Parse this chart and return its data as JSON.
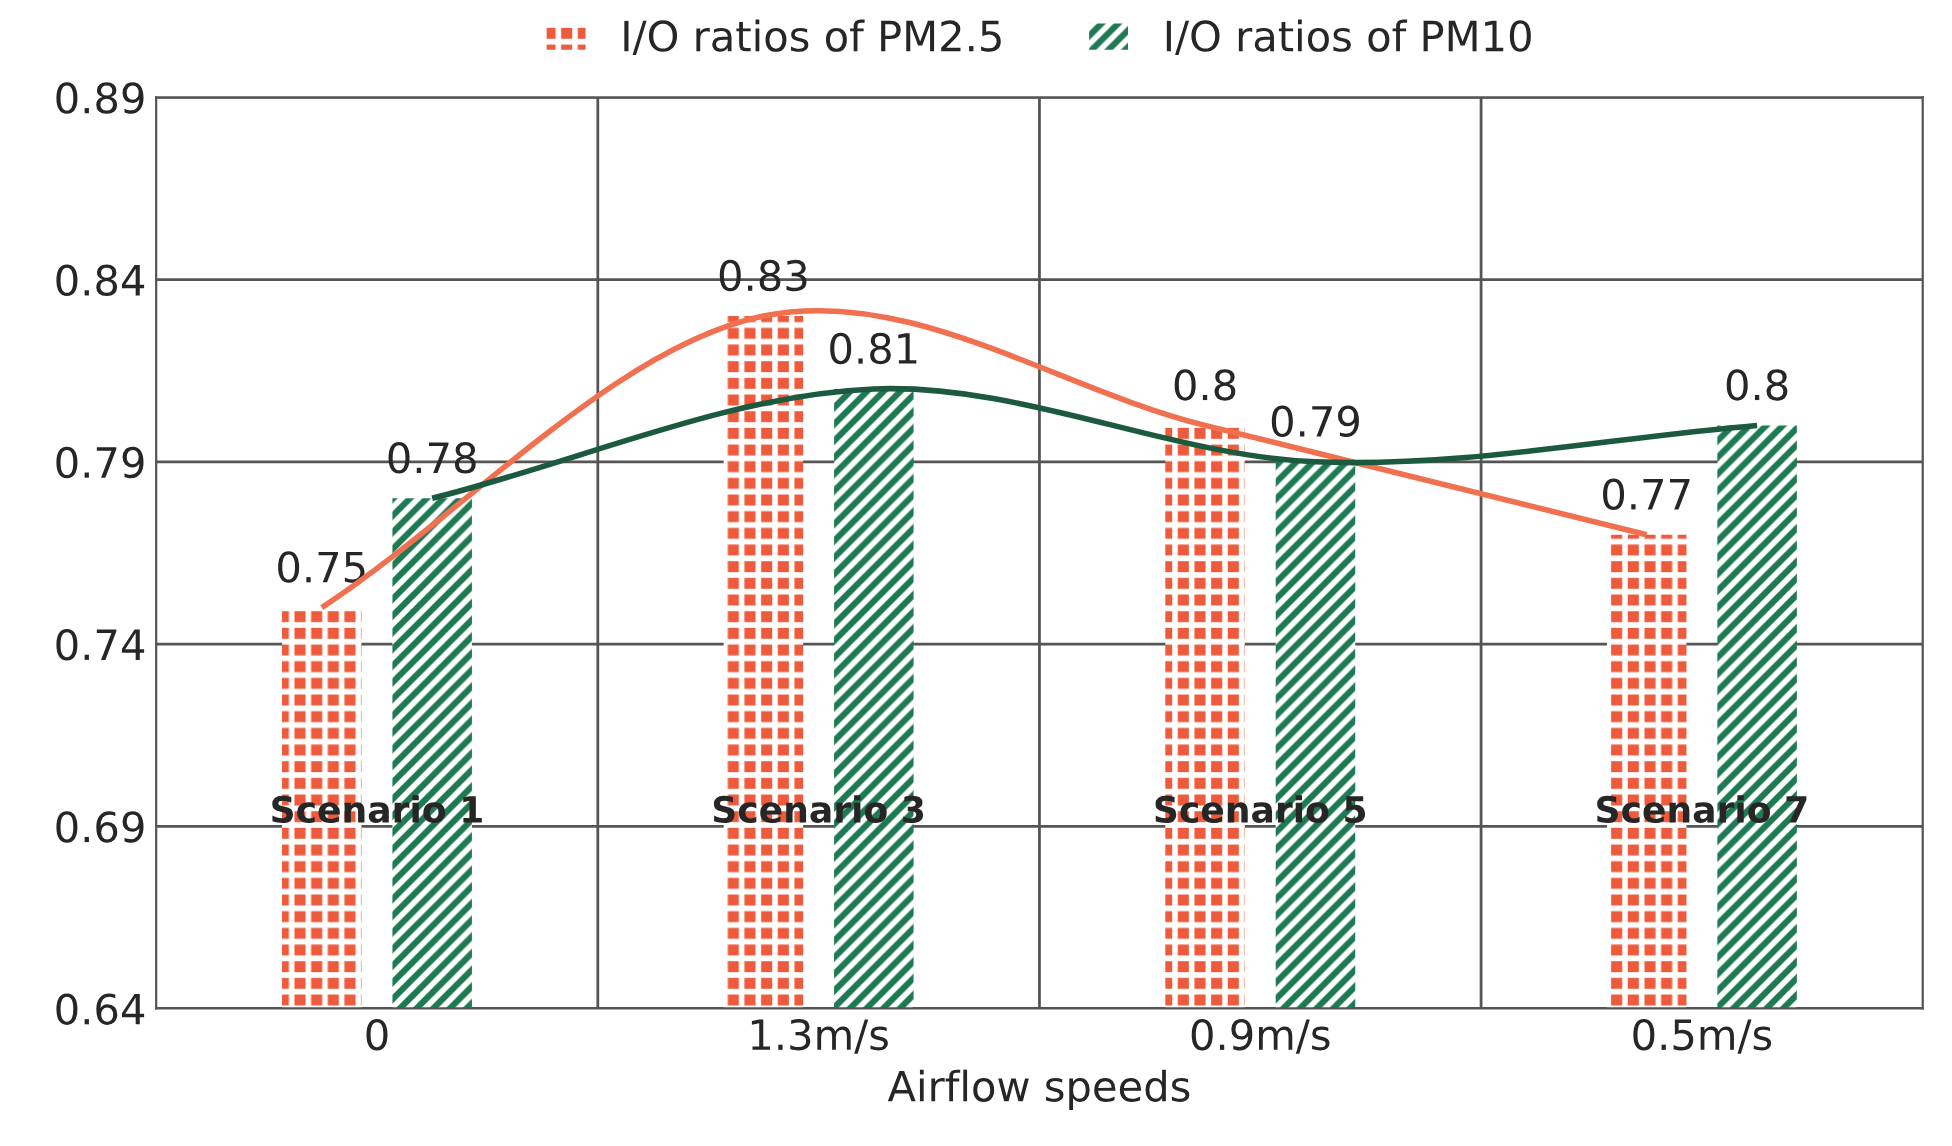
{
  "chart_data": {
    "type": "bar",
    "xlabel": "Airflow speeds",
    "categories": [
      "0",
      "1.3m/s",
      "0.9m/s",
      "0.5m/s"
    ],
    "series": [
      {
        "name": "I/O ratios of PM2.5",
        "color": "#ee5a3c",
        "values": [
          0.75,
          0.83,
          0.8,
          0.77
        ],
        "value_labels": [
          "0.75",
          "0.83",
          "0.8",
          "0.77"
        ]
      },
      {
        "name": "I/O ratios of PM10",
        "color": "#1e7a52",
        "values": [
          0.78,
          0.81,
          0.79,
          0.8
        ],
        "value_labels": [
          "0.78",
          "0.81",
          "0.79",
          "0.8"
        ]
      },
      {
        "type": "line",
        "color": "#f07050",
        "values": [
          0.75,
          0.83,
          0.8,
          0.77
        ]
      },
      {
        "type": "line",
        "color": "#1c5a40",
        "values": [
          0.78,
          0.81,
          0.79,
          0.8
        ]
      }
    ],
    "ylim": [
      0.64,
      0.89
    ],
    "yticks": [
      0.64,
      0.69,
      0.74,
      0.79,
      0.84,
      0.89
    ],
    "grid": true,
    "legend": "top",
    "annotations": [
      "Scenario 1",
      "Scenario 3",
      "Scenario 5",
      "Scenario 7"
    ]
  }
}
